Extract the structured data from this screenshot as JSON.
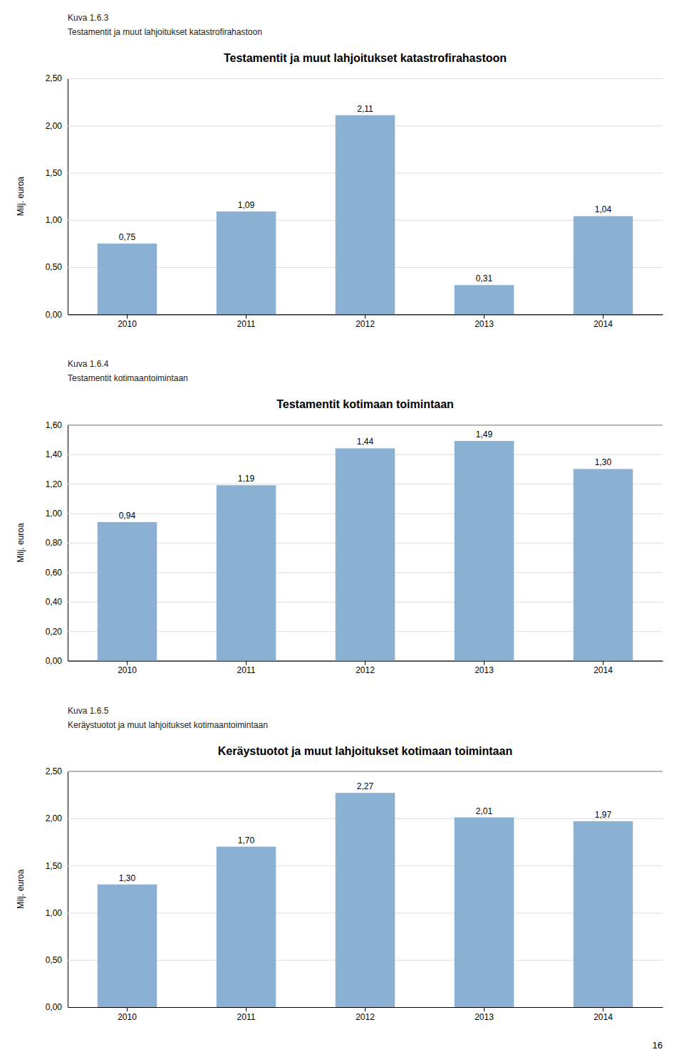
{
  "chart_data": [
    {
      "type": "bar",
      "annotations": [
        "Kuva 1.6.3",
        "Testamentit ja muut lahjoitukset katastrofirahastoon"
      ],
      "title": "Testamentit ja muut lahjoitukset katastrofirahastoon",
      "categories": [
        "2010",
        "2011",
        "2012",
        "2013",
        "2014"
      ],
      "values": [
        0.75,
        1.09,
        2.11,
        0.31,
        1.04
      ],
      "value_labels": [
        "0,75",
        "1,09",
        "2,11",
        "0,31",
        "1,04"
      ],
      "data_labels": true,
      "color": "#8ab0d4",
      "ylabel": "Milj. euroa",
      "ylim": [
        0,
        2.5
      ],
      "yticks": [
        {
          "value": 0.0,
          "label": "0,00"
        },
        {
          "value": 0.5,
          "label": "0,50"
        },
        {
          "value": 1.0,
          "label": "1,00"
        },
        {
          "value": 1.5,
          "label": "1,50"
        },
        {
          "value": 2.0,
          "label": "2,00"
        },
        {
          "value": 2.5,
          "label": "2,50"
        }
      ],
      "grid": true
    },
    {
      "type": "bar",
      "annotations": [
        "Kuva 1.6.4",
        "Testamentit kotimaantoimintaan"
      ],
      "title": "Testamentit kotimaan toimintaan",
      "categories": [
        "2010",
        "2011",
        "2012",
        "2013",
        "2014"
      ],
      "values": [
        0.94,
        1.19,
        1.44,
        1.49,
        1.3
      ],
      "value_labels": [
        "0,94",
        "1,19",
        "1,44",
        "1,49",
        "1,30"
      ],
      "data_labels": true,
      "color": "#8ab0d4",
      "ylabel": "Milj. euroa",
      "ylim": [
        0,
        1.6
      ],
      "yticks": [
        {
          "value": 0.0,
          "label": "0,00"
        },
        {
          "value": 0.2,
          "label": "0,20"
        },
        {
          "value": 0.4,
          "label": "0,40"
        },
        {
          "value": 0.6,
          "label": "0,60"
        },
        {
          "value": 0.8,
          "label": "0,80"
        },
        {
          "value": 1.0,
          "label": "1,00"
        },
        {
          "value": 1.2,
          "label": "1,20"
        },
        {
          "value": 1.4,
          "label": "1,40"
        },
        {
          "value": 1.6,
          "label": "1,60"
        }
      ],
      "grid": true
    },
    {
      "type": "bar",
      "annotations": [
        "Kuva 1.6.5",
        "Keräystuotot ja muut lahjoitukset kotimaantoimintaan"
      ],
      "title": "Keräystuotot ja muut lahjoitukset kotimaan toimintaan",
      "categories": [
        "2010",
        "2011",
        "2012",
        "2013",
        "2014"
      ],
      "values": [
        1.3,
        1.7,
        2.27,
        2.01,
        1.97
      ],
      "value_labels": [
        "1,30",
        "1,70",
        "2,27",
        "2,01",
        "1,97"
      ],
      "data_labels": true,
      "color": "#8ab0d4",
      "ylabel": "Milj. euroa",
      "ylim": [
        0,
        2.5
      ],
      "yticks": [
        {
          "value": 0.0,
          "label": "0,00"
        },
        {
          "value": 0.5,
          "label": "0,50"
        },
        {
          "value": 1.0,
          "label": "1,00"
        },
        {
          "value": 1.5,
          "label": "1,50"
        },
        {
          "value": 2.0,
          "label": "2,00"
        },
        {
          "value": 2.5,
          "label": "2,50"
        }
      ],
      "grid": true
    }
  ],
  "annotations": [
    "16"
  ]
}
